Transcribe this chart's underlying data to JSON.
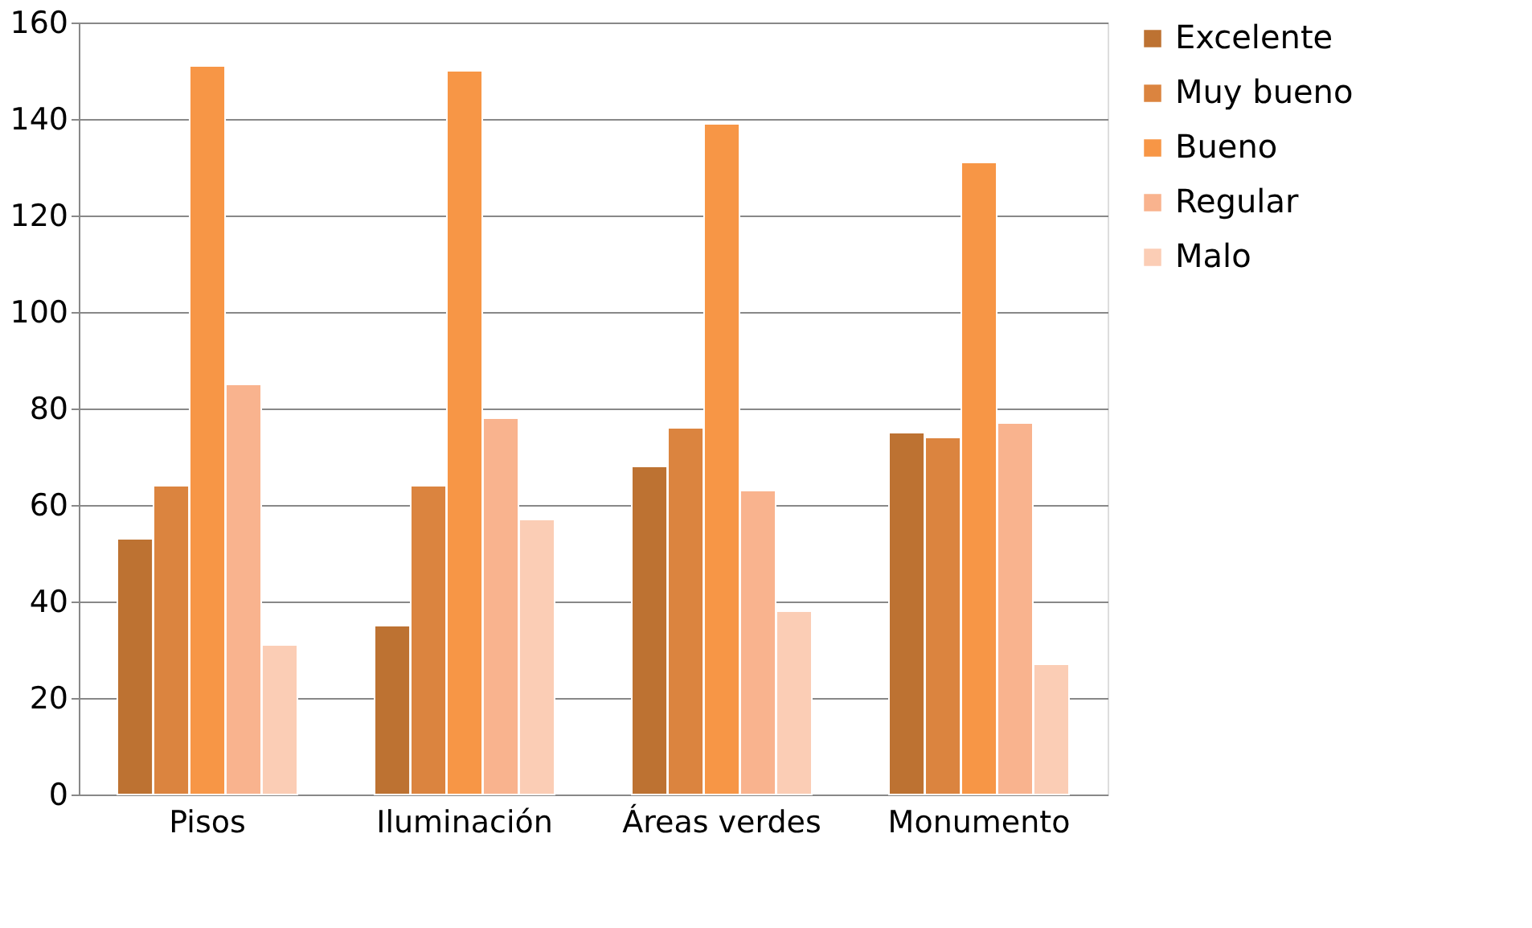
{
  "chart_data": {
    "type": "bar",
    "categories": [
      "Pisos",
      "Iluminación",
      "Áreas verdes",
      "Monumento"
    ],
    "series": [
      {
        "name": "Excelente",
        "color": "#bd7232",
        "values": [
          53,
          35,
          68,
          75
        ]
      },
      {
        "name": "Muy bueno",
        "color": "#db843f",
        "values": [
          64,
          64,
          76,
          74
        ]
      },
      {
        "name": "Bueno",
        "color": "#f79646",
        "values": [
          151,
          150,
          139,
          131
        ]
      },
      {
        "name": "Regular",
        "color": "#f9b38e",
        "values": [
          85,
          78,
          63,
          77
        ]
      },
      {
        "name": "Malo",
        "color": "#fbcdb5",
        "values": [
          31,
          57,
          38,
          27
        ]
      }
    ],
    "ylim": [
      0,
      160
    ],
    "yticks": [
      0,
      20,
      40,
      60,
      80,
      100,
      120,
      140,
      160
    ],
    "grid": "y",
    "legend": "right"
  }
}
